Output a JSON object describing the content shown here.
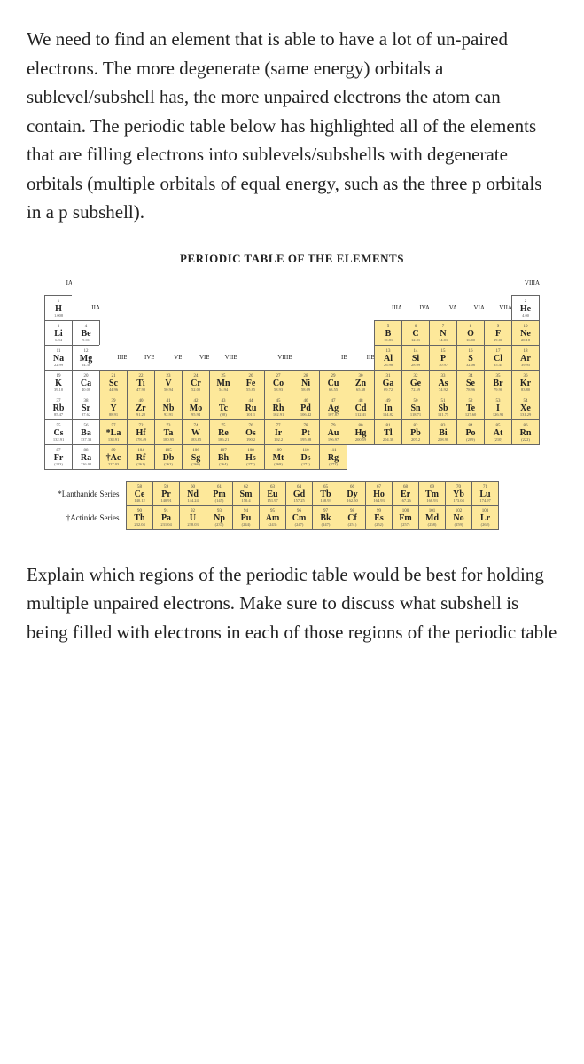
{
  "question_text": "We need to find an element that is able to have a lot of un-paired electrons. The more degenerate (same energy) orbitals a sublevel/subshell has, the more unpaired electrons the atom can contain. The periodic table below has highlighted all of the elements that are filling electrons into sublevels/subshells with degenerate orbitals (multiple orbitals of equal energy, such as the three p orbitals in a p subshell).",
  "followup_text": "Explain which regions of the periodic table would be best for holding multiple unpaired electrons. Make sure to discuss what subshell is being filled with electrons in each of those regions of the periodic table",
  "periodic_table": {
    "title": "PERIODIC TABLE OF THE ELEMENTS",
    "highlight_color": "#fde89a",
    "border_color": "#666666",
    "background": "#ffffff",
    "title_fontsize": 13,
    "group_labels": [
      "IA",
      "IIA",
      "IIIB",
      "IVB",
      "VB",
      "VIB",
      "VIIB",
      "",
      "VIIIB",
      "",
      "IB",
      "IIB",
      "IIIA",
      "IVA",
      "VA",
      "VIA",
      "VIIA",
      "VIIIA"
    ],
    "lanthanide_label": "*Lanthanide Series",
    "actinide_label": "†Actinide Series",
    "la_marker": "*La",
    "ac_marker": "†Ac",
    "elements": [
      {
        "z": 1,
        "s": "H",
        "m": "1.008",
        "r": 1,
        "c": 1,
        "hl": false
      },
      {
        "z": 2,
        "s": "He",
        "m": "4.00",
        "r": 1,
        "c": 18,
        "hl": false
      },
      {
        "z": 3,
        "s": "Li",
        "m": "6.94",
        "r": 2,
        "c": 1,
        "hl": false
      },
      {
        "z": 4,
        "s": "Be",
        "m": "9.01",
        "r": 2,
        "c": 2,
        "hl": false
      },
      {
        "z": 5,
        "s": "B",
        "m": "10.81",
        "r": 2,
        "c": 13,
        "hl": true
      },
      {
        "z": 6,
        "s": "C",
        "m": "12.01",
        "r": 2,
        "c": 14,
        "hl": true
      },
      {
        "z": 7,
        "s": "N",
        "m": "14.01",
        "r": 2,
        "c": 15,
        "hl": true
      },
      {
        "z": 8,
        "s": "O",
        "m": "16.00",
        "r": 2,
        "c": 16,
        "hl": true
      },
      {
        "z": 9,
        "s": "F",
        "m": "19.00",
        "r": 2,
        "c": 17,
        "hl": true
      },
      {
        "z": 10,
        "s": "Ne",
        "m": "20.18",
        "r": 2,
        "c": 18,
        "hl": true
      },
      {
        "z": 11,
        "s": "Na",
        "m": "22.99",
        "r": 3,
        "c": 1,
        "hl": false
      },
      {
        "z": 12,
        "s": "Mg",
        "m": "24.30",
        "r": 3,
        "c": 2,
        "hl": false
      },
      {
        "z": 13,
        "s": "Al",
        "m": "26.98",
        "r": 3,
        "c": 13,
        "hl": true
      },
      {
        "z": 14,
        "s": "Si",
        "m": "28.09",
        "r": 3,
        "c": 14,
        "hl": true
      },
      {
        "z": 15,
        "s": "P",
        "m": "30.97",
        "r": 3,
        "c": 15,
        "hl": true
      },
      {
        "z": 16,
        "s": "S",
        "m": "32.06",
        "r": 3,
        "c": 16,
        "hl": true
      },
      {
        "z": 17,
        "s": "Cl",
        "m": "35.45",
        "r": 3,
        "c": 17,
        "hl": true
      },
      {
        "z": 18,
        "s": "Ar",
        "m": "39.95",
        "r": 3,
        "c": 18,
        "hl": true
      },
      {
        "z": 19,
        "s": "K",
        "m": "39.10",
        "r": 4,
        "c": 1,
        "hl": false
      },
      {
        "z": 20,
        "s": "Ca",
        "m": "40.08",
        "r": 4,
        "c": 2,
        "hl": false
      },
      {
        "z": 21,
        "s": "Sc",
        "m": "44.96",
        "r": 4,
        "c": 3,
        "hl": true
      },
      {
        "z": 22,
        "s": "Ti",
        "m": "47.90",
        "r": 4,
        "c": 4,
        "hl": true
      },
      {
        "z": 23,
        "s": "V",
        "m": "50.94",
        "r": 4,
        "c": 5,
        "hl": true
      },
      {
        "z": 24,
        "s": "Cr",
        "m": "52.00",
        "r": 4,
        "c": 6,
        "hl": true
      },
      {
        "z": 25,
        "s": "Mn",
        "m": "54.94",
        "r": 4,
        "c": 7,
        "hl": true
      },
      {
        "z": 26,
        "s": "Fe",
        "m": "55.85",
        "r": 4,
        "c": 8,
        "hl": true
      },
      {
        "z": 27,
        "s": "Co",
        "m": "58.93",
        "r": 4,
        "c": 9,
        "hl": true
      },
      {
        "z": 28,
        "s": "Ni",
        "m": "58.69",
        "r": 4,
        "c": 10,
        "hl": true
      },
      {
        "z": 29,
        "s": "Cu",
        "m": "63.55",
        "r": 4,
        "c": 11,
        "hl": true
      },
      {
        "z": 30,
        "s": "Zn",
        "m": "65.38",
        "r": 4,
        "c": 12,
        "hl": true
      },
      {
        "z": 31,
        "s": "Ga",
        "m": "69.72",
        "r": 4,
        "c": 13,
        "hl": true
      },
      {
        "z": 32,
        "s": "Ge",
        "m": "72.59",
        "r": 4,
        "c": 14,
        "hl": true
      },
      {
        "z": 33,
        "s": "As",
        "m": "74.92",
        "r": 4,
        "c": 15,
        "hl": true
      },
      {
        "z": 34,
        "s": "Se",
        "m": "78.96",
        "r": 4,
        "c": 16,
        "hl": true
      },
      {
        "z": 35,
        "s": "Br",
        "m": "79.90",
        "r": 4,
        "c": 17,
        "hl": true
      },
      {
        "z": 36,
        "s": "Kr",
        "m": "83.80",
        "r": 4,
        "c": 18,
        "hl": true
      },
      {
        "z": 37,
        "s": "Rb",
        "m": "85.47",
        "r": 5,
        "c": 1,
        "hl": false
      },
      {
        "z": 38,
        "s": "Sr",
        "m": "87.62",
        "r": 5,
        "c": 2,
        "hl": false
      },
      {
        "z": 39,
        "s": "Y",
        "m": "88.91",
        "r": 5,
        "c": 3,
        "hl": true
      },
      {
        "z": 40,
        "s": "Zr",
        "m": "91.22",
        "r": 5,
        "c": 4,
        "hl": true
      },
      {
        "z": 41,
        "s": "Nb",
        "m": "92.91",
        "r": 5,
        "c": 5,
        "hl": true
      },
      {
        "z": 42,
        "s": "Mo",
        "m": "95.94",
        "r": 5,
        "c": 6,
        "hl": true
      },
      {
        "z": 43,
        "s": "Tc",
        "m": "(98)",
        "r": 5,
        "c": 7,
        "hl": true
      },
      {
        "z": 44,
        "s": "Ru",
        "m": "101.1",
        "r": 5,
        "c": 8,
        "hl": true
      },
      {
        "z": 45,
        "s": "Rh",
        "m": "102.91",
        "r": 5,
        "c": 9,
        "hl": true
      },
      {
        "z": 46,
        "s": "Pd",
        "m": "106.42",
        "r": 5,
        "c": 10,
        "hl": true
      },
      {
        "z": 47,
        "s": "Ag",
        "m": "107.87",
        "r": 5,
        "c": 11,
        "hl": true
      },
      {
        "z": 48,
        "s": "Cd",
        "m": "112.41",
        "r": 5,
        "c": 12,
        "hl": true
      },
      {
        "z": 49,
        "s": "In",
        "m": "114.82",
        "r": 5,
        "c": 13,
        "hl": true
      },
      {
        "z": 50,
        "s": "Sn",
        "m": "118.71",
        "r": 5,
        "c": 14,
        "hl": true
      },
      {
        "z": 51,
        "s": "Sb",
        "m": "121.75",
        "r": 5,
        "c": 15,
        "hl": true
      },
      {
        "z": 52,
        "s": "Te",
        "m": "127.60",
        "r": 5,
        "c": 16,
        "hl": true
      },
      {
        "z": 53,
        "s": "I",
        "m": "126.91",
        "r": 5,
        "c": 17,
        "hl": true
      },
      {
        "z": 54,
        "s": "Xe",
        "m": "131.29",
        "r": 5,
        "c": 18,
        "hl": true
      },
      {
        "z": 55,
        "s": "Cs",
        "m": "132.91",
        "r": 6,
        "c": 1,
        "hl": false
      },
      {
        "z": 56,
        "s": "Ba",
        "m": "137.33",
        "r": 6,
        "c": 2,
        "hl": false
      },
      {
        "z": 57,
        "s": "*La",
        "m": "138.91",
        "r": 6,
        "c": 3,
        "hl": true
      },
      {
        "z": 72,
        "s": "Hf",
        "m": "178.49",
        "r": 6,
        "c": 4,
        "hl": true
      },
      {
        "z": 73,
        "s": "Ta",
        "m": "180.95",
        "r": 6,
        "c": 5,
        "hl": true
      },
      {
        "z": 74,
        "s": "W",
        "m": "183.85",
        "r": 6,
        "c": 6,
        "hl": true
      },
      {
        "z": 75,
        "s": "Re",
        "m": "186.21",
        "r": 6,
        "c": 7,
        "hl": true
      },
      {
        "z": 76,
        "s": "Os",
        "m": "190.2",
        "r": 6,
        "c": 8,
        "hl": true
      },
      {
        "z": 77,
        "s": "Ir",
        "m": "192.2",
        "r": 6,
        "c": 9,
        "hl": true
      },
      {
        "z": 78,
        "s": "Pt",
        "m": "195.08",
        "r": 6,
        "c": 10,
        "hl": true
      },
      {
        "z": 79,
        "s": "Au",
        "m": "196.97",
        "r": 6,
        "c": 11,
        "hl": true
      },
      {
        "z": 80,
        "s": "Hg",
        "m": "200.59",
        "r": 6,
        "c": 12,
        "hl": true
      },
      {
        "z": 81,
        "s": "Tl",
        "m": "204.38",
        "r": 6,
        "c": 13,
        "hl": true
      },
      {
        "z": 82,
        "s": "Pb",
        "m": "207.2",
        "r": 6,
        "c": 14,
        "hl": true
      },
      {
        "z": 83,
        "s": "Bi",
        "m": "208.98",
        "r": 6,
        "c": 15,
        "hl": true
      },
      {
        "z": 84,
        "s": "Po",
        "m": "(209)",
        "r": 6,
        "c": 16,
        "hl": true
      },
      {
        "z": 85,
        "s": "At",
        "m": "(210)",
        "r": 6,
        "c": 17,
        "hl": true
      },
      {
        "z": 86,
        "s": "Rn",
        "m": "(222)",
        "r": 6,
        "c": 18,
        "hl": true
      },
      {
        "z": 87,
        "s": "Fr",
        "m": "(223)",
        "r": 7,
        "c": 1,
        "hl": false
      },
      {
        "z": 88,
        "s": "Ra",
        "m": "226.02",
        "r": 7,
        "c": 2,
        "hl": false
      },
      {
        "z": 89,
        "s": "†Ac",
        "m": "227.03",
        "r": 7,
        "c": 3,
        "hl": true
      },
      {
        "z": 104,
        "s": "Rf",
        "m": "(261)",
        "r": 7,
        "c": 4,
        "hl": true
      },
      {
        "z": 105,
        "s": "Db",
        "m": "(262)",
        "r": 7,
        "c": 5,
        "hl": true
      },
      {
        "z": 106,
        "s": "Sg",
        "m": "(266)",
        "r": 7,
        "c": 6,
        "hl": true
      },
      {
        "z": 107,
        "s": "Bh",
        "m": "(264)",
        "r": 7,
        "c": 7,
        "hl": true
      },
      {
        "z": 108,
        "s": "Hs",
        "m": "(277)",
        "r": 7,
        "c": 8,
        "hl": true
      },
      {
        "z": 109,
        "s": "Mt",
        "m": "(268)",
        "r": 7,
        "c": 9,
        "hl": true
      },
      {
        "z": 110,
        "s": "Ds",
        "m": "(271)",
        "r": 7,
        "c": 10,
        "hl": true
      },
      {
        "z": 111,
        "s": "Rg",
        "m": "(272)",
        "r": 7,
        "c": 11,
        "hl": true
      }
    ],
    "lanthanides": [
      {
        "z": 58,
        "s": "Ce",
        "m": "140.12"
      },
      {
        "z": 59,
        "s": "Pr",
        "m": "140.91"
      },
      {
        "z": 60,
        "s": "Nd",
        "m": "144.24"
      },
      {
        "z": 61,
        "s": "Pm",
        "m": "(145)"
      },
      {
        "z": 62,
        "s": "Sm",
        "m": "150.4"
      },
      {
        "z": 63,
        "s": "Eu",
        "m": "151.97"
      },
      {
        "z": 64,
        "s": "Gd",
        "m": "157.25"
      },
      {
        "z": 65,
        "s": "Tb",
        "m": "158.93"
      },
      {
        "z": 66,
        "s": "Dy",
        "m": "162.50"
      },
      {
        "z": 67,
        "s": "Ho",
        "m": "164.93"
      },
      {
        "z": 68,
        "s": "Er",
        "m": "167.26"
      },
      {
        "z": 69,
        "s": "Tm",
        "m": "168.93"
      },
      {
        "z": 70,
        "s": "Yb",
        "m": "173.04"
      },
      {
        "z": 71,
        "s": "Lu",
        "m": "174.97"
      }
    ],
    "actinides": [
      {
        "z": 90,
        "s": "Th",
        "m": "232.04"
      },
      {
        "z": 91,
        "s": "Pa",
        "m": "231.04"
      },
      {
        "z": 92,
        "s": "U",
        "m": "238.03"
      },
      {
        "z": 93,
        "s": "Np",
        "m": "(237)"
      },
      {
        "z": 94,
        "s": "Pu",
        "m": "(244)"
      },
      {
        "z": 95,
        "s": "Am",
        "m": "(243)"
      },
      {
        "z": 96,
        "s": "Cm",
        "m": "(247)"
      },
      {
        "z": 97,
        "s": "Bk",
        "m": "(247)"
      },
      {
        "z": 98,
        "s": "Cf",
        "m": "(251)"
      },
      {
        "z": 99,
        "s": "Es",
        "m": "(252)"
      },
      {
        "z": 100,
        "s": "Fm",
        "m": "(257)"
      },
      {
        "z": 101,
        "s": "Md",
        "m": "(258)"
      },
      {
        "z": 102,
        "s": "No",
        "m": "(259)"
      },
      {
        "z": 103,
        "s": "Lr",
        "m": "(262)"
      }
    ]
  }
}
